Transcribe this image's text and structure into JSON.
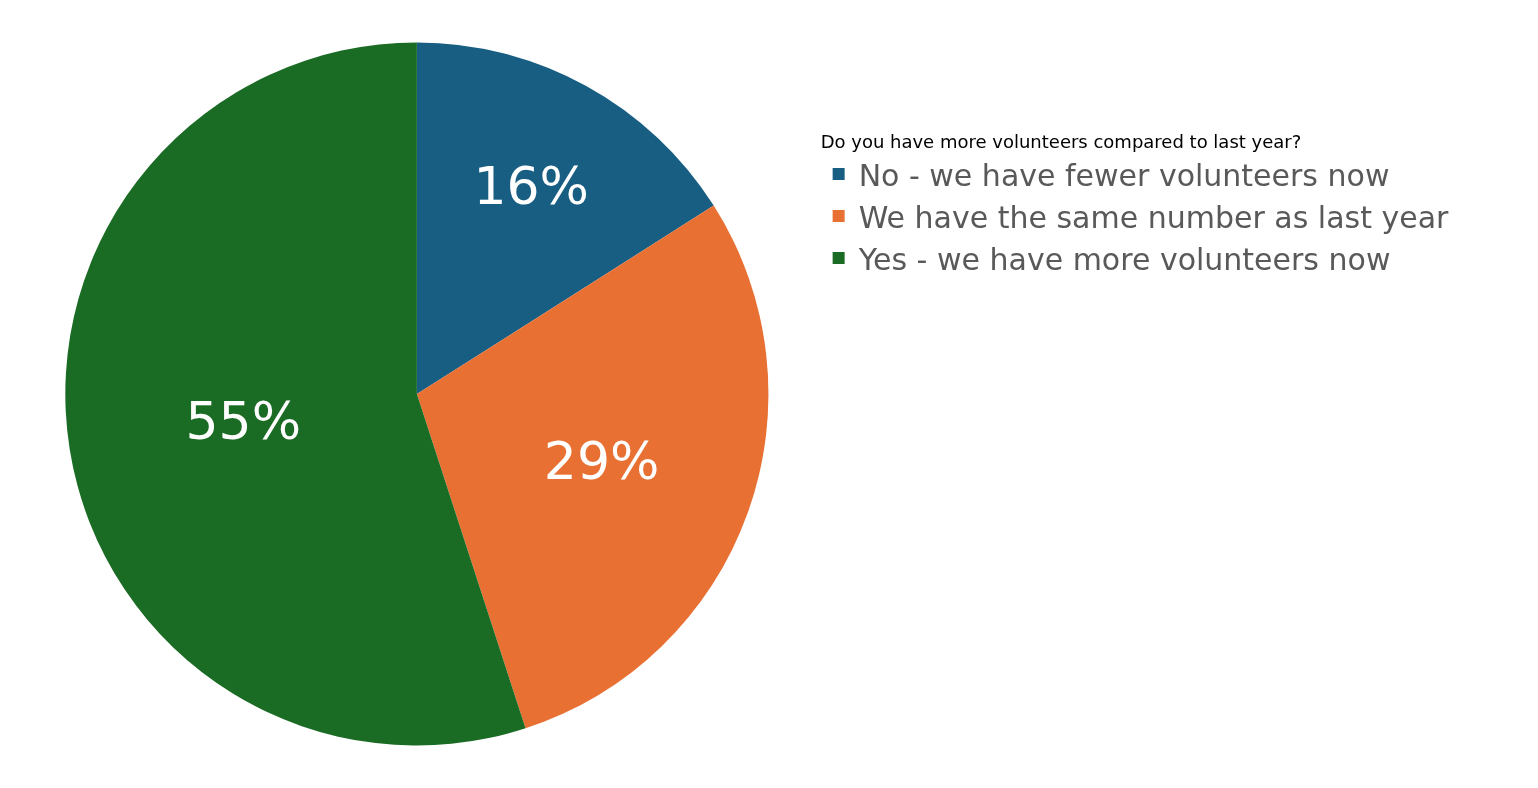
{
  "chart_data": {
    "type": "pie",
    "legend_title": "Do you have more volunteers compared to last year?",
    "categories": [
      "No - we have fewer volunteers now",
      "We have the same number as last year",
      "Yes - we have more volunteers now"
    ],
    "values": [
      16,
      29,
      55
    ],
    "value_labels": [
      "16%",
      "29%",
      "55%"
    ],
    "colors": [
      "#175e82",
      "#e87033",
      "#1a6b24"
    ],
    "legend": "right"
  }
}
